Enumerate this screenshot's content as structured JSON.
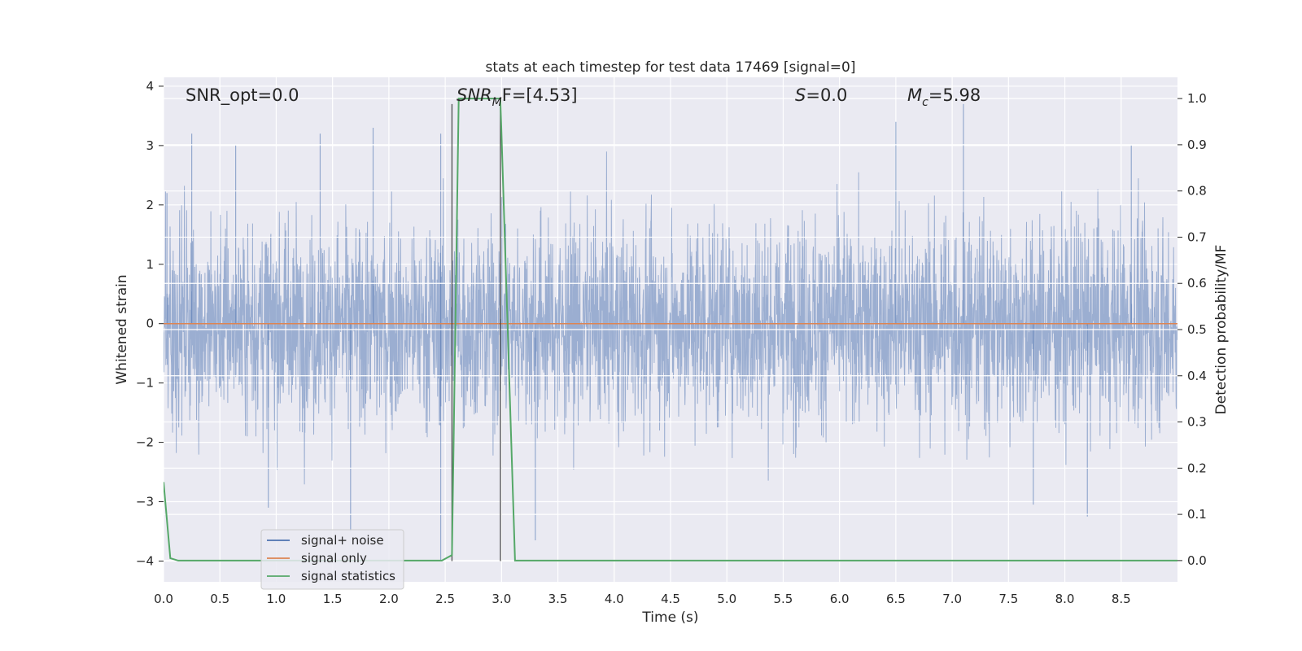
{
  "chart_data": {
    "type": "line",
    "title": "stats at each timestep for test data 17469 [signal=0]",
    "xlabel": "Time (s)",
    "ylabel": "Whitened strain",
    "y2label": "Detection probability/MF",
    "xlim": [
      0.0,
      9.0
    ],
    "ylim": [
      -4.35,
      4.15
    ],
    "y2lim": [
      -0.046,
      1.046
    ],
    "xticks": [
      "0.0",
      "0.5",
      "1.0",
      "1.5",
      "2.0",
      "2.5",
      "3.0",
      "3.5",
      "4.0",
      "4.5",
      "5.0",
      "5.5",
      "6.0",
      "6.5",
      "7.0",
      "7.5",
      "8.0",
      "8.5"
    ],
    "yticks": [
      "4",
      "3",
      "2",
      "1",
      "0",
      "−1",
      "−2",
      "−3",
      "−4"
    ],
    "y2ticks": [
      "1.0",
      "0.9",
      "0.8",
      "0.7",
      "0.6",
      "0.5",
      "0.4",
      "0.3",
      "0.2",
      "0.1",
      "0.0"
    ],
    "grid": true,
    "legend_position": "lower-left",
    "annotations": {
      "snr_opt": "SNR_opt=0.0",
      "snr_mf_main": "SNR",
      "snr_mf_sub": "M",
      "snr_mf_rest": "F=[4.53]",
      "s_var": "S",
      "s_rest": "=0.0",
      "mc_var": "M",
      "mc_sub": "c",
      "mc_rest": "=5.98"
    },
    "vertical_markers": [
      2.56,
      2.99
    ],
    "series": [
      {
        "name": "signal+ noise",
        "color": "#4c72b0",
        "style": "dense noise band",
        "core_range": [
          -1.7,
          1.4
        ],
        "max_range": [
          -4.0,
          3.7
        ],
        "notable_peaks": [
          {
            "x": 0.03,
            "y": 2.2
          },
          {
            "x": 0.25,
            "y": 3.2
          },
          {
            "x": 0.64,
            "y": 3.0
          },
          {
            "x": 1.39,
            "y": 3.2
          },
          {
            "x": 1.86,
            "y": 3.3
          },
          {
            "x": 2.46,
            "y": 3.2
          },
          {
            "x": 6.5,
            "y": 3.4
          },
          {
            "x": 7.1,
            "y": 3.7
          },
          {
            "x": 8.59,
            "y": 3.0
          },
          {
            "x": 1.66,
            "y": -3.5
          },
          {
            "x": 2.46,
            "y": -4.0
          },
          {
            "x": 3.3,
            "y": -3.65
          },
          {
            "x": 8.2,
            "y": -3.25
          },
          {
            "x": 0.93,
            "y": -3.1
          },
          {
            "x": 7.72,
            "y": -3.05
          }
        ]
      },
      {
        "name": "signal only",
        "color": "#dd8452",
        "x": [
          0.0,
          9.0
        ],
        "y": [
          0.0,
          0.0
        ]
      },
      {
        "name": "signal statistics",
        "color": "#55a868",
        "axis": "right",
        "x": [
          0.0,
          0.06,
          0.13,
          2.47,
          2.56,
          2.62,
          2.99,
          3.12,
          9.0
        ],
        "y": [
          0.17,
          0.005,
          0.0,
          0.0,
          0.012,
          1.0,
          1.0,
          0.0,
          0.0
        ]
      }
    ]
  }
}
